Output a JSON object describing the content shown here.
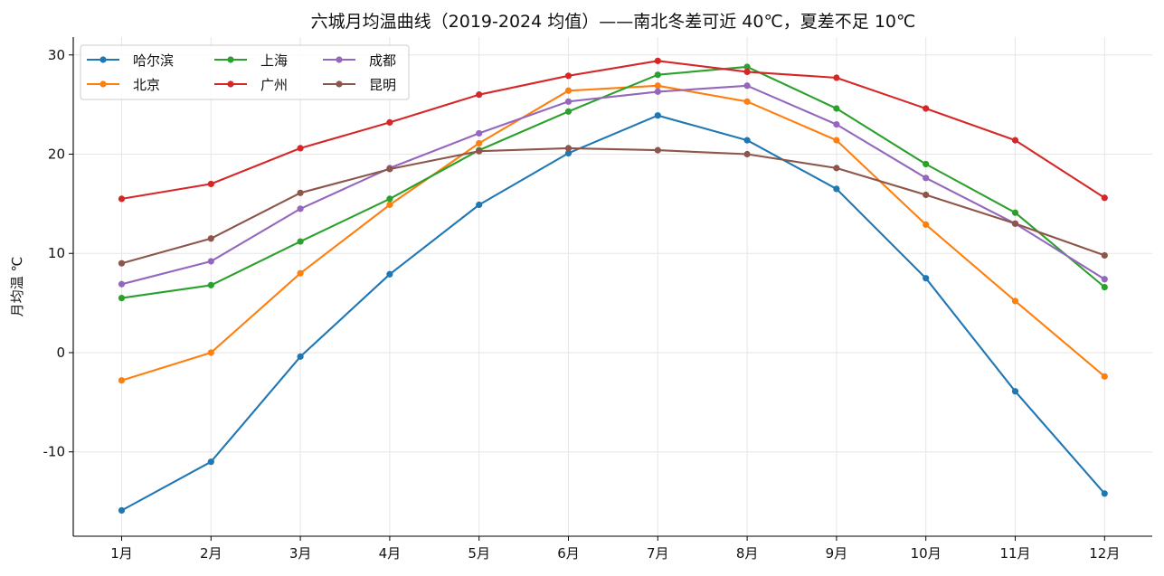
{
  "chart_data": {
    "type": "line",
    "title": "六城月均温曲线（2019-2024 均值）——南北冬差可近 40℃，夏差不足 10℃",
    "xlabel": "",
    "ylabel": "月均温 ℃",
    "categories": [
      "1月",
      "2月",
      "3月",
      "4月",
      "5月",
      "6月",
      "7月",
      "8月",
      "9月",
      "10月",
      "11月",
      "12月"
    ],
    "y_ticks": [
      -10,
      0,
      10,
      20,
      30
    ],
    "y_tick_labels": [
      "-10",
      "0",
      "10",
      "20",
      "30"
    ],
    "ylim": [
      -18.5,
      31.8
    ],
    "grid": true,
    "legend_position": "top-left",
    "series": [
      {
        "name": "哈尔滨",
        "color": "#1f77b4",
        "values": [
          -15.9,
          -11.0,
          -0.4,
          7.9,
          14.9,
          20.1,
          23.9,
          21.4,
          16.5,
          7.5,
          -3.9,
          -14.2
        ]
      },
      {
        "name": "北京",
        "color": "#ff7f0e",
        "values": [
          -2.8,
          0.0,
          8.0,
          14.9,
          21.1,
          26.4,
          26.9,
          25.3,
          21.4,
          12.9,
          5.2,
          -2.4
        ]
      },
      {
        "name": "上海",
        "color": "#2ca02c",
        "values": [
          5.5,
          6.8,
          11.2,
          15.5,
          20.4,
          24.3,
          28.0,
          28.8,
          24.6,
          19.0,
          14.1,
          6.6
        ]
      },
      {
        "name": "广州",
        "color": "#d62728",
        "values": [
          15.5,
          17.0,
          20.6,
          23.2,
          26.0,
          27.9,
          29.4,
          28.3,
          27.7,
          24.6,
          21.4,
          15.6
        ]
      },
      {
        "name": "成都",
        "color": "#9467bd",
        "values": [
          6.9,
          9.2,
          14.5,
          18.6,
          22.1,
          25.3,
          26.3,
          26.9,
          23.0,
          17.6,
          13.0,
          7.4
        ]
      },
      {
        "name": "昆明",
        "color": "#8c564b",
        "values": [
          9.0,
          11.5,
          16.1,
          18.5,
          20.3,
          20.6,
          20.4,
          20.0,
          18.6,
          15.9,
          13.0,
          9.8
        ]
      }
    ]
  }
}
